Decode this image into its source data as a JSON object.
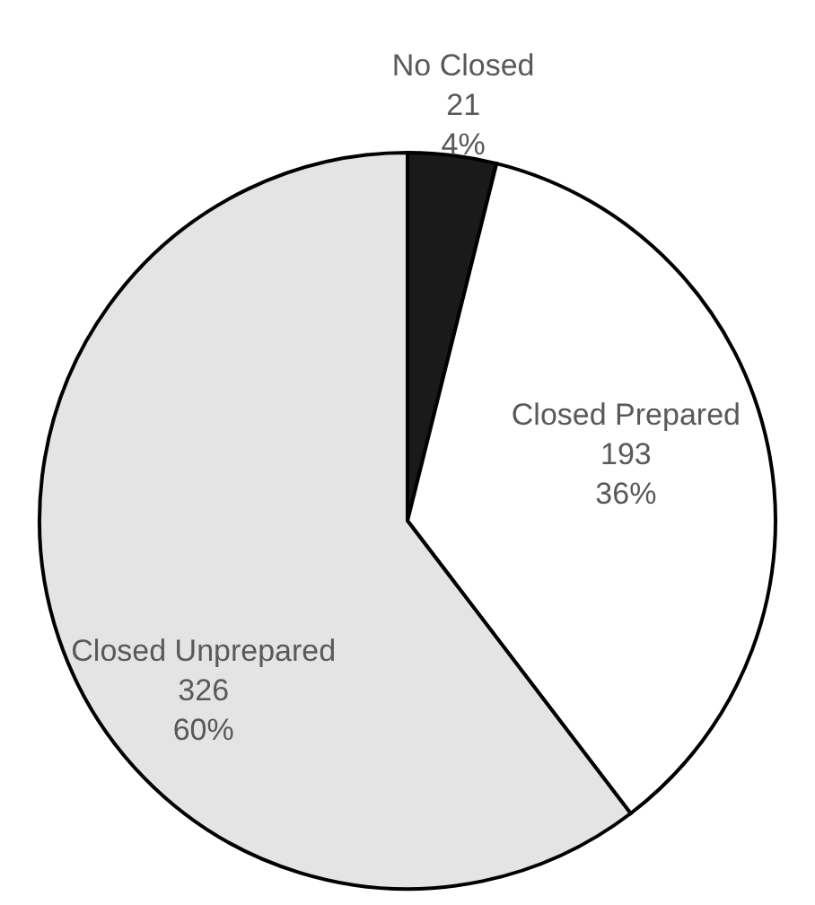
{
  "chart_data": {
    "type": "pie",
    "categories": [
      "No Closed",
      "Closed Prepared",
      "Closed Unprepared"
    ],
    "values": [
      21,
      193,
      326
    ],
    "colors": [
      "#1a1a1a",
      "#ffffff",
      "#e4e4e4"
    ],
    "value_labels": [
      "21\n4%",
      "193\n36%",
      "326\n60%"
    ]
  }
}
